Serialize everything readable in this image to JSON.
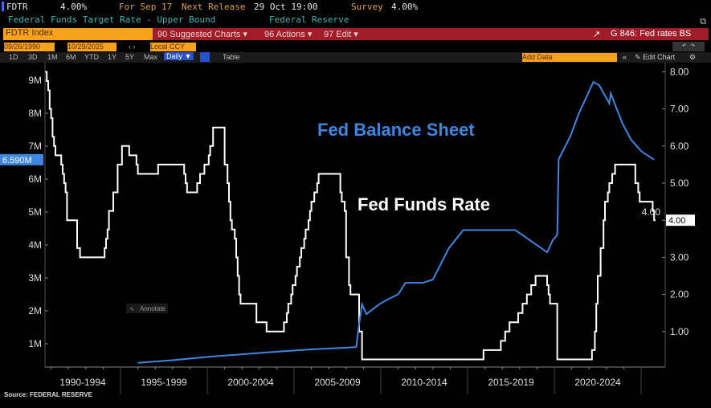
{
  "header": {
    "ticker": "FDTR",
    "value": "4.00%",
    "for_label": "For Sep 17",
    "next_release_label": "Next Release",
    "next_release": "29 Oct 19:00",
    "survey_label": "Survey",
    "survey": "4.00%",
    "description": "Federal Funds Target Rate - Upper Bound",
    "source_org": "Federal Reserve"
  },
  "toolbar": {
    "security": "FDTR Index",
    "suggested": "90 Suggested Charts ▾",
    "actions": "96 Actions ▾",
    "edit": "97 Edit ▾",
    "chart_name": "G 846: Fed rates BS"
  },
  "controls": {
    "start_date": "09/26/1990",
    "end_date": "10/29/2025",
    "currency": "Local CCY",
    "periods": [
      "1D",
      "3D",
      "1M",
      "6M",
      "YTD",
      "1Y",
      "5Y",
      "Max"
    ],
    "frequency": "Daily ▼",
    "table": "Table",
    "add_data": "Add Data",
    "edit_chart": "Edit Chart"
  },
  "chart_data": {
    "type": "line",
    "x_tick_labels": [
      "1990-1994",
      "1995-1999",
      "2000-2004",
      "2005-2009",
      "2010-2014",
      "2015-2019",
      "2020-2024"
    ],
    "left_axis": {
      "ticks": [
        "1M",
        "2M",
        "3M",
        "4M",
        "5M",
        "6M",
        "7M",
        "8M",
        "9M"
      ],
      "last_value_label": "6.590M"
    },
    "right_axis": {
      "ticks": [
        "1.00",
        "2.00",
        "3.00",
        "4.00",
        "5.00",
        "6.00",
        "7.00",
        "8.00"
      ],
      "last_value_label": "4.00"
    },
    "annotations": {
      "balance_sheet": "Fed Balance Sheet",
      "funds_rate": "Fed Funds Rate",
      "annotate_button": "Annotate"
    },
    "source": "Source: FEDERAL RESERVE",
    "colors": {
      "balance_sheet": "#3f86e0",
      "funds_rate": "#ffffff"
    },
    "series": [
      {
        "name": "Fed Funds Rate",
        "axis": "right",
        "points": [
          [
            "1990-09",
            8.0
          ],
          [
            "1990-10",
            7.75
          ],
          [
            "1990-11",
            7.5
          ],
          [
            "1990-12",
            7.0
          ],
          [
            "1991-01",
            6.75
          ],
          [
            "1991-02",
            6.25
          ],
          [
            "1991-03",
            6.0
          ],
          [
            "1991-04",
            5.75
          ],
          [
            "1991-08",
            5.5
          ],
          [
            "1991-09",
            5.25
          ],
          [
            "1991-10",
            5.0
          ],
          [
            "1991-11",
            4.75
          ],
          [
            "1991-12",
            4.0
          ],
          [
            "1992-07",
            3.25
          ],
          [
            "1992-09",
            3.0
          ],
          [
            "1994-02",
            3.25
          ],
          [
            "1994-03",
            3.5
          ],
          [
            "1994-04",
            3.75
          ],
          [
            "1994-05",
            4.25
          ],
          [
            "1994-08",
            4.75
          ],
          [
            "1994-11",
            5.5
          ],
          [
            "1995-02",
            6.0
          ],
          [
            "1995-07",
            5.75
          ],
          [
            "1995-12",
            5.5
          ],
          [
            "1996-01",
            5.25
          ],
          [
            "1997-03",
            5.5
          ],
          [
            "1998-09",
            5.25
          ],
          [
            "1998-10",
            5.0
          ],
          [
            "1998-11",
            4.75
          ],
          [
            "1999-06",
            5.0
          ],
          [
            "1999-08",
            5.25
          ],
          [
            "1999-11",
            5.5
          ],
          [
            "2000-02",
            5.75
          ],
          [
            "2000-03",
            6.0
          ],
          [
            "2000-05",
            6.5
          ],
          [
            "2001-01",
            5.5
          ],
          [
            "2001-03",
            5.0
          ],
          [
            "2001-04",
            4.5
          ],
          [
            "2001-05",
            4.0
          ],
          [
            "2001-06",
            3.75
          ],
          [
            "2001-08",
            3.5
          ],
          [
            "2001-09",
            3.0
          ],
          [
            "2001-10",
            2.5
          ],
          [
            "2001-11",
            2.0
          ],
          [
            "2001-12",
            1.75
          ],
          [
            "2002-11",
            1.25
          ],
          [
            "2003-06",
            1.0
          ],
          [
            "2004-06",
            1.25
          ],
          [
            "2004-08",
            1.5
          ],
          [
            "2004-09",
            1.75
          ],
          [
            "2004-11",
            2.0
          ],
          [
            "2004-12",
            2.25
          ],
          [
            "2005-02",
            2.5
          ],
          [
            "2005-03",
            2.75
          ],
          [
            "2005-05",
            3.0
          ],
          [
            "2005-06",
            3.25
          ],
          [
            "2005-08",
            3.5
          ],
          [
            "2005-09",
            3.75
          ],
          [
            "2005-11",
            4.0
          ],
          [
            "2005-12",
            4.25
          ],
          [
            "2006-01",
            4.5
          ],
          [
            "2006-03",
            4.75
          ],
          [
            "2006-05",
            5.0
          ],
          [
            "2006-06",
            5.25
          ],
          [
            "2007-09",
            4.75
          ],
          [
            "2007-10",
            4.5
          ],
          [
            "2007-12",
            4.25
          ],
          [
            "2008-01",
            3.0
          ],
          [
            "2008-03",
            2.25
          ],
          [
            "2008-04",
            2.0
          ],
          [
            "2008-10",
            1.0
          ],
          [
            "2008-12",
            0.25
          ],
          [
            "2015-12",
            0.5
          ],
          [
            "2016-12",
            0.75
          ],
          [
            "2017-03",
            1.0
          ],
          [
            "2017-06",
            1.25
          ],
          [
            "2017-12",
            1.5
          ],
          [
            "2018-03",
            1.75
          ],
          [
            "2018-06",
            2.0
          ],
          [
            "2018-09",
            2.25
          ],
          [
            "2018-12",
            2.5
          ],
          [
            "2019-08",
            2.25
          ],
          [
            "2019-09",
            2.0
          ],
          [
            "2019-10",
            1.75
          ],
          [
            "2020-03",
            0.25
          ],
          [
            "2022-03",
            0.5
          ],
          [
            "2022-05",
            1.0
          ],
          [
            "2022-06",
            1.75
          ],
          [
            "2022-07",
            2.5
          ],
          [
            "2022-09",
            3.25
          ],
          [
            "2022-11",
            4.0
          ],
          [
            "2022-12",
            4.5
          ],
          [
            "2023-02",
            4.75
          ],
          [
            "2023-03",
            5.0
          ],
          [
            "2023-05",
            5.25
          ],
          [
            "2023-07",
            5.5
          ],
          [
            "2024-09",
            5.0
          ],
          [
            "2024-11",
            4.75
          ],
          [
            "2024-12",
            4.5
          ],
          [
            "2025-09",
            4.25
          ],
          [
            "2025-10",
            4.0
          ]
        ]
      },
      {
        "name": "Fed Balance Sheet",
        "axis": "left",
        "points": [
          [
            "1996-01",
            0.42
          ],
          [
            "1998-01",
            0.5
          ],
          [
            "2000-01",
            0.6
          ],
          [
            "2002-01",
            0.68
          ],
          [
            "2004-01",
            0.76
          ],
          [
            "2006-01",
            0.83
          ],
          [
            "2008-01",
            0.88
          ],
          [
            "2008-08",
            0.9
          ],
          [
            "2008-10",
            1.6
          ],
          [
            "2008-12",
            2.2
          ],
          [
            "2009-03",
            1.9
          ],
          [
            "2009-12",
            2.2
          ],
          [
            "2010-06",
            2.35
          ],
          [
            "2011-01",
            2.5
          ],
          [
            "2011-06",
            2.85
          ],
          [
            "2012-06",
            2.85
          ],
          [
            "2013-01",
            2.95
          ],
          [
            "2013-12",
            3.9
          ],
          [
            "2014-10",
            4.45
          ],
          [
            "2016-01",
            4.45
          ],
          [
            "2017-10",
            4.45
          ],
          [
            "2019-08",
            3.78
          ],
          [
            "2019-12",
            4.15
          ],
          [
            "2020-03",
            4.3
          ],
          [
            "2020-04",
            6.6
          ],
          [
            "2020-12",
            7.3
          ],
          [
            "2021-06",
            8.0
          ],
          [
            "2022-04",
            8.95
          ],
          [
            "2022-08",
            8.85
          ],
          [
            "2023-03",
            8.3
          ],
          [
            "2023-04",
            8.6
          ],
          [
            "2023-12",
            7.7
          ],
          [
            "2024-06",
            7.2
          ],
          [
            "2025-01",
            6.85
          ],
          [
            "2025-10",
            6.59
          ]
        ]
      }
    ]
  }
}
